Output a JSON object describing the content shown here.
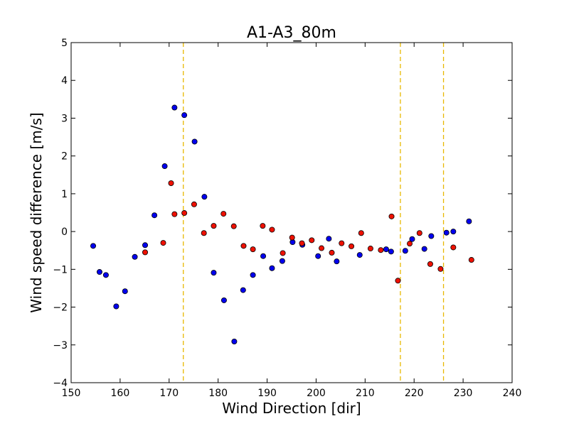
{
  "chart_data": {
    "type": "scatter",
    "title": "A1-A3_80m",
    "xlabel": "Wind Direction [dir]",
    "ylabel": "Wind speed difference [m/s]",
    "xlim": [
      150,
      240
    ],
    "ylim": [
      -4,
      5
    ],
    "xticks": [
      "150",
      "160",
      "170",
      "180",
      "190",
      "200",
      "210",
      "220",
      "230",
      "240"
    ],
    "yticks": [
      "−4",
      "−3",
      "−2",
      "−1",
      "0",
      "1",
      "2",
      "3",
      "4",
      "5"
    ],
    "grid": false,
    "vlines": [
      172.9,
      217.2,
      226.0
    ],
    "colors": {
      "series_blue": "#0000ee",
      "series_red": "#ee1100",
      "vline": "#e8b800",
      "marker_edge": "#000000"
    },
    "series": [
      {
        "color": "blue",
        "points": [
          [
            154.5,
            -0.38
          ],
          [
            155.8,
            -1.07
          ],
          [
            157.1,
            -1.15
          ],
          [
            159.2,
            -1.98
          ],
          [
            161.0,
            -1.58
          ],
          [
            163.0,
            -0.67
          ],
          [
            165.1,
            -0.36
          ],
          [
            167.0,
            0.43
          ],
          [
            169.1,
            1.73
          ],
          [
            171.1,
            3.28
          ],
          [
            173.1,
            3.08
          ],
          [
            175.2,
            2.38
          ],
          [
            177.2,
            0.92
          ],
          [
            179.1,
            -1.09
          ],
          [
            181.2,
            -1.82
          ],
          [
            183.3,
            -2.91
          ],
          [
            185.1,
            -1.55
          ],
          [
            187.1,
            -1.15
          ],
          [
            189.2,
            -0.65
          ],
          [
            191.0,
            -0.97
          ],
          [
            193.1,
            -0.78
          ],
          [
            195.2,
            -0.28
          ],
          [
            197.2,
            -0.35
          ],
          [
            200.4,
            -0.65
          ],
          [
            202.6,
            -0.19
          ],
          [
            204.2,
            -0.79
          ],
          [
            208.9,
            -0.62
          ],
          [
            214.3,
            -0.47
          ],
          [
            215.3,
            -0.53
          ],
          [
            218.2,
            -0.51
          ],
          [
            219.6,
            -0.2
          ],
          [
            222.1,
            -0.46
          ],
          [
            223.5,
            -0.12
          ],
          [
            226.6,
            -0.03
          ],
          [
            228.0,
            0.0
          ],
          [
            231.2,
            0.27
          ]
        ]
      },
      {
        "color": "red",
        "points": [
          [
            165.1,
            -0.55
          ],
          [
            168.8,
            -0.3
          ],
          [
            170.4,
            1.28
          ],
          [
            171.1,
            0.46
          ],
          [
            173.1,
            0.49
          ],
          [
            175.1,
            0.72
          ],
          [
            177.1,
            -0.04
          ],
          [
            179.1,
            0.15
          ],
          [
            181.1,
            0.47
          ],
          [
            183.2,
            0.14
          ],
          [
            185.2,
            -0.38
          ],
          [
            187.1,
            -0.47
          ],
          [
            189.1,
            0.15
          ],
          [
            191.0,
            0.05
          ],
          [
            193.2,
            -0.57
          ],
          [
            195.1,
            -0.16
          ],
          [
            197.1,
            -0.31
          ],
          [
            199.1,
            -0.23
          ],
          [
            201.1,
            -0.44
          ],
          [
            203.2,
            -0.56
          ],
          [
            205.2,
            -0.31
          ],
          [
            207.2,
            -0.39
          ],
          [
            209.2,
            -0.04
          ],
          [
            211.1,
            -0.45
          ],
          [
            213.2,
            -0.49
          ],
          [
            215.4,
            0.4
          ],
          [
            216.7,
            -1.3
          ],
          [
            219.1,
            -0.32
          ],
          [
            221.1,
            -0.04
          ],
          [
            223.3,
            -0.86
          ],
          [
            225.4,
            -0.99
          ],
          [
            228.0,
            -0.42
          ],
          [
            231.7,
            -0.75
          ]
        ]
      }
    ]
  }
}
